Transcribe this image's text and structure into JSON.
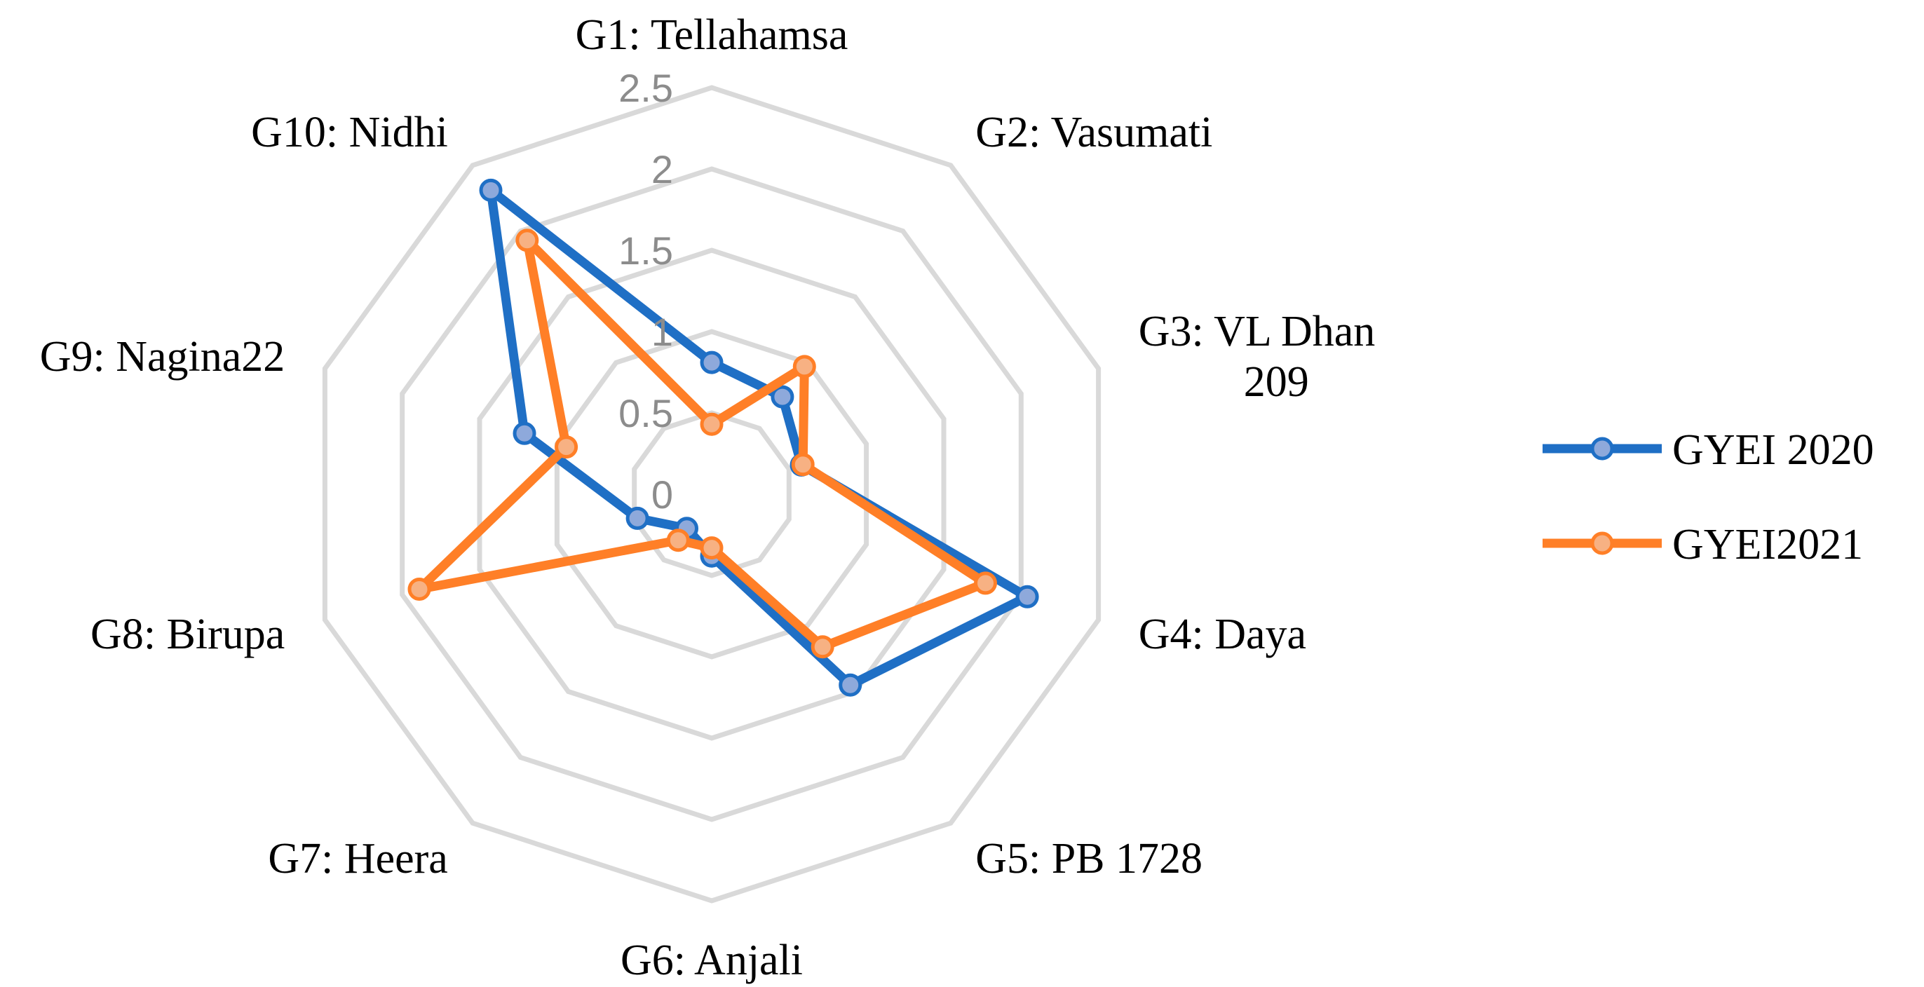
{
  "chart_data": {
    "type": "radar",
    "categories": [
      "G1: Tellahamsa",
      "G2: Vasumati",
      [
        "G3: VL Dhan",
        "209"
      ],
      "G4: Daya",
      "G5: PB 1728",
      "G6: Anjali",
      "G7: Heera",
      "G8: Birupa",
      "G9: Nagina22",
      "G10: Nidhi"
    ],
    "series": [
      {
        "name": "GYEI 2020",
        "color": "#1f6fc5",
        "marker_fill": "#8ea9db",
        "values": [
          0.81,
          0.74,
          0.58,
          2.04,
          1.45,
          0.38,
          0.26,
          0.48,
          1.21,
          2.31
        ]
      },
      {
        "name": "GYEI2021",
        "color": "#ff7f27",
        "marker_fill": "#f7b183",
        "values": [
          0.43,
          0.97,
          0.59,
          1.77,
          1.16,
          0.33,
          0.35,
          1.89,
          0.94,
          1.93
        ]
      }
    ],
    "rlim": [
      0,
      2.5
    ],
    "ticks": [
      "0",
      "0.5",
      "1",
      "1.5",
      "2",
      "2.5"
    ],
    "grid": true,
    "legend": "right"
  }
}
